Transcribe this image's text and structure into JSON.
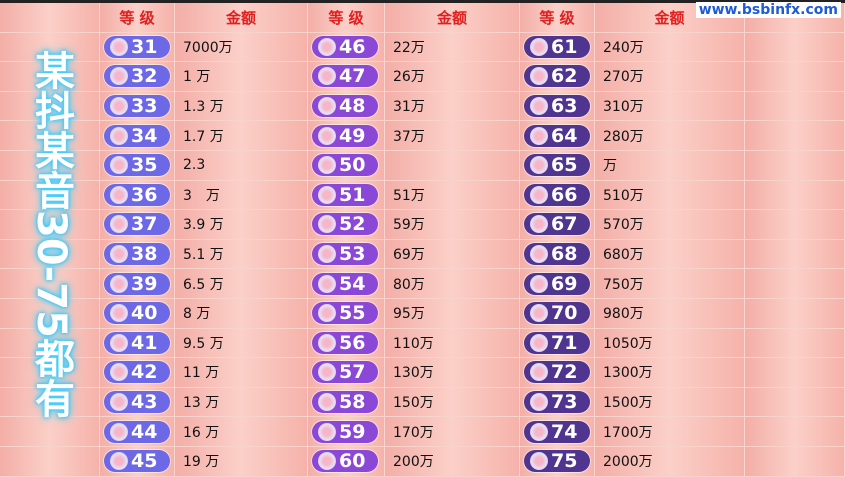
{
  "watermark": "www.bsbinfx.com",
  "overlay_text": "某抖某音30-75都有",
  "header": {
    "level": "等 级",
    "amount": "金额"
  },
  "badge_colors": {
    "group1": "#6c68e6",
    "group2": "#8b47d6",
    "group3": "#4f3590"
  },
  "columns": [
    {
      "group": "group1",
      "rows": [
        {
          "level": "31",
          "amount": "7000万"
        },
        {
          "level": "32",
          "amount": "1 万"
        },
        {
          "level": "33",
          "amount": "1.3 万"
        },
        {
          "level": "34",
          "amount": "1.7 万"
        },
        {
          "level": "35",
          "amount": "2.3"
        },
        {
          "level": "36",
          "amount": "3　万"
        },
        {
          "level": "37",
          "amount": "3.9 万"
        },
        {
          "level": "38",
          "amount": "5.1 万"
        },
        {
          "level": "39",
          "amount": "6.5 万"
        },
        {
          "level": "40",
          "amount": "8 万"
        },
        {
          "level": "41",
          "amount": "9.5 万"
        },
        {
          "level": "42",
          "amount": "11 万"
        },
        {
          "level": "43",
          "amount": "13 万"
        },
        {
          "level": "44",
          "amount": "16 万"
        },
        {
          "level": "45",
          "amount": "19 万"
        }
      ]
    },
    {
      "group": "group2",
      "rows": [
        {
          "level": "46",
          "amount": "22万"
        },
        {
          "level": "47",
          "amount": "26万"
        },
        {
          "level": "48",
          "amount": "31万"
        },
        {
          "level": "49",
          "amount": "37万"
        },
        {
          "level": "50",
          "amount": ""
        },
        {
          "level": "51",
          "amount": "51万"
        },
        {
          "level": "52",
          "amount": "59万"
        },
        {
          "level": "53",
          "amount": "69万"
        },
        {
          "level": "54",
          "amount": "80万"
        },
        {
          "level": "55",
          "amount": "95万"
        },
        {
          "level": "56",
          "amount": "110万"
        },
        {
          "level": "57",
          "amount": "130万"
        },
        {
          "level": "58",
          "amount": "150万"
        },
        {
          "level": "59",
          "amount": "170万"
        },
        {
          "level": "60",
          "amount": "200万"
        }
      ]
    },
    {
      "group": "group3",
      "rows": [
        {
          "level": "61",
          "amount": "240万"
        },
        {
          "level": "62",
          "amount": "270万"
        },
        {
          "level": "63",
          "amount": "310万"
        },
        {
          "level": "64",
          "amount": "280万"
        },
        {
          "level": "65",
          "amount": "万"
        },
        {
          "level": "66",
          "amount": "510万"
        },
        {
          "level": "67",
          "amount": "570万"
        },
        {
          "level": "68",
          "amount": "680万"
        },
        {
          "level": "69",
          "amount": "750万"
        },
        {
          "level": "70",
          "amount": "980万"
        },
        {
          "level": "71",
          "amount": "1050万"
        },
        {
          "level": "72",
          "amount": "1300万"
        },
        {
          "level": "73",
          "amount": "1500万"
        },
        {
          "level": "74",
          "amount": "1700万"
        },
        {
          "level": "75",
          "amount": "2000万"
        }
      ]
    }
  ]
}
